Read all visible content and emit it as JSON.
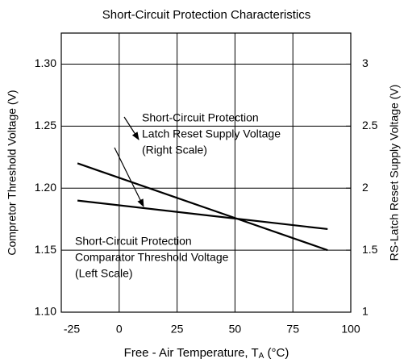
{
  "chart_data": {
    "type": "line",
    "title": "Short-Circuit Protection  Characteristics",
    "xlabel": {
      "text": "Free - Air Temperature, T",
      "sub": "A",
      "unit": " (°C)"
    },
    "ylabel": "Compretor Threshold Voltage (V)",
    "y2label": "RS-Latch Reset Supply Voltage  (V)",
    "xlim": [
      -25,
      100
    ],
    "xticks": [
      -25,
      0,
      25,
      50,
      75,
      100
    ],
    "ylim": [
      1.1,
      1.325
    ],
    "yticks": [
      {
        "value": 1.1,
        "label": "1.10"
      },
      1.15,
      {
        "value": 1.2,
        "label": "1.20"
      },
      1.25,
      {
        "value": 1.3,
        "label": "1.30"
      }
    ],
    "y2lim": [
      1,
      3.25
    ],
    "y2ticks": [
      1,
      1.5,
      2,
      2.5,
      3
    ],
    "grid": true,
    "series": [
      {
        "name": "Short-Circuit Protection Comparator Threshold Voltage (Left Scale)",
        "color": "#000000",
        "x": [
          -18,
          90
        ],
        "values": [
          1.19,
          1.167
        ]
      },
      {
        "name": "Short-Circuit Protection Latch Reset Supply Voltage (Right Scale)",
        "color": "#000000",
        "axis": "y2",
        "x": [
          -18,
          90
        ],
        "values": [
          2.2,
          1.5
        ]
      }
    ],
    "annotations": [
      {
        "lines": [
          "Short-Circuit Protection",
          "Latch Reset Supply Voltage",
          "(Right Scale)"
        ]
      },
      {
        "lines": [
          "Short-Circuit Protection",
          "Comparator Threshold Voltage",
          "(Left Scale)"
        ]
      }
    ]
  }
}
